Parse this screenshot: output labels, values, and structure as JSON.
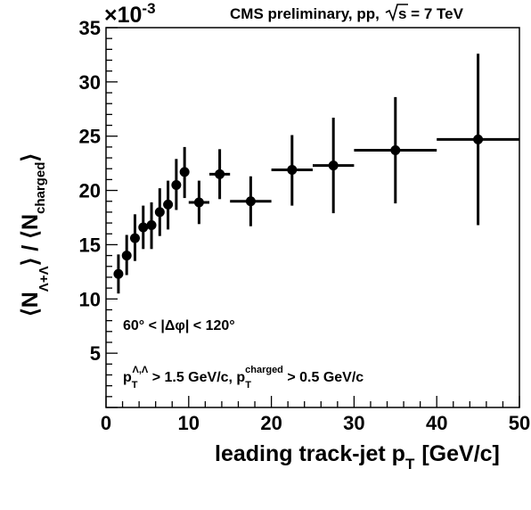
{
  "chart_data": {
    "type": "scatter",
    "header": "CMS preliminary, pp,",
    "sqrt_s_label": "s = 7 TeV",
    "exponent_label": "×10",
    "exponent_power": "-3",
    "xlabel": "leading track-jet p",
    "xlabel_sub": "T",
    "xlabel_unit": "[GeV/c]",
    "ylabel_num": "⟨N",
    "ylabel_num_sub": "Λ+Λ",
    "ylabel_sep": "⟩ / ⟨N",
    "ylabel_den_sub": "charged",
    "ylabel_end": "⟩",
    "xlim": [
      0,
      50
    ],
    "ylim": [
      0,
      35
    ],
    "x_ticks": [
      0,
      10,
      20,
      30,
      40,
      50
    ],
    "y_ticks": [
      5,
      10,
      15,
      20,
      25,
      30,
      35
    ],
    "annotation_dphi": "60° < |Δφ| < 120°",
    "annotation_cuts_a": "p",
    "annotation_cuts_a_sub": "T",
    "annotation_cuts_a_sup": "Λ,Λ",
    "annotation_cuts_b": " > 1.5 GeV/c, p",
    "annotation_cuts_b_sub": "T",
    "annotation_cuts_b_sup": "charged",
    "annotation_cuts_c": " > 0.5 GeV/c",
    "points": [
      {
        "x": 1.5,
        "xerr": 0.5,
        "y": 12.3,
        "ylo": 10.5,
        "yhi": 14.1
      },
      {
        "x": 2.5,
        "xerr": 0.5,
        "y": 14.0,
        "ylo": 12.2,
        "yhi": 15.9
      },
      {
        "x": 3.5,
        "xerr": 0.5,
        "y": 15.6,
        "ylo": 13.5,
        "yhi": 17.8
      },
      {
        "x": 4.5,
        "xerr": 0.5,
        "y": 16.6,
        "ylo": 14.6,
        "yhi": 18.6
      },
      {
        "x": 5.5,
        "xerr": 0.5,
        "y": 16.8,
        "ylo": 14.6,
        "yhi": 18.9
      },
      {
        "x": 6.5,
        "xerr": 0.5,
        "y": 18.0,
        "ylo": 15.8,
        "yhi": 20.2
      },
      {
        "x": 7.5,
        "xerr": 0.5,
        "y": 18.7,
        "ylo": 16.4,
        "yhi": 20.9
      },
      {
        "x": 8.5,
        "xerr": 0.5,
        "y": 20.5,
        "ylo": 18.2,
        "yhi": 22.9
      },
      {
        "x": 9.5,
        "xerr": 0.5,
        "y": 21.7,
        "ylo": 19.3,
        "yhi": 24.0
      },
      {
        "x": 11.25,
        "xerr": 1.25,
        "y": 18.9,
        "ylo": 16.9,
        "yhi": 20.9
      },
      {
        "x": 13.75,
        "xerr": 1.25,
        "y": 21.5,
        "ylo": 19.2,
        "yhi": 23.8
      },
      {
        "x": 17.5,
        "xerr": 2.5,
        "y": 19.0,
        "ylo": 16.7,
        "yhi": 21.3
      },
      {
        "x": 22.5,
        "xerr": 2.5,
        "y": 21.9,
        "ylo": 18.6,
        "yhi": 25.1
      },
      {
        "x": 27.5,
        "xerr": 2.5,
        "y": 22.3,
        "ylo": 17.9,
        "yhi": 26.7
      },
      {
        "x": 35.0,
        "xerr": 5.0,
        "y": 23.7,
        "ylo": 18.8,
        "yhi": 28.6
      },
      {
        "x": 45.0,
        "xerr": 5.0,
        "y": 24.7,
        "ylo": 16.8,
        "yhi": 32.6
      }
    ]
  }
}
